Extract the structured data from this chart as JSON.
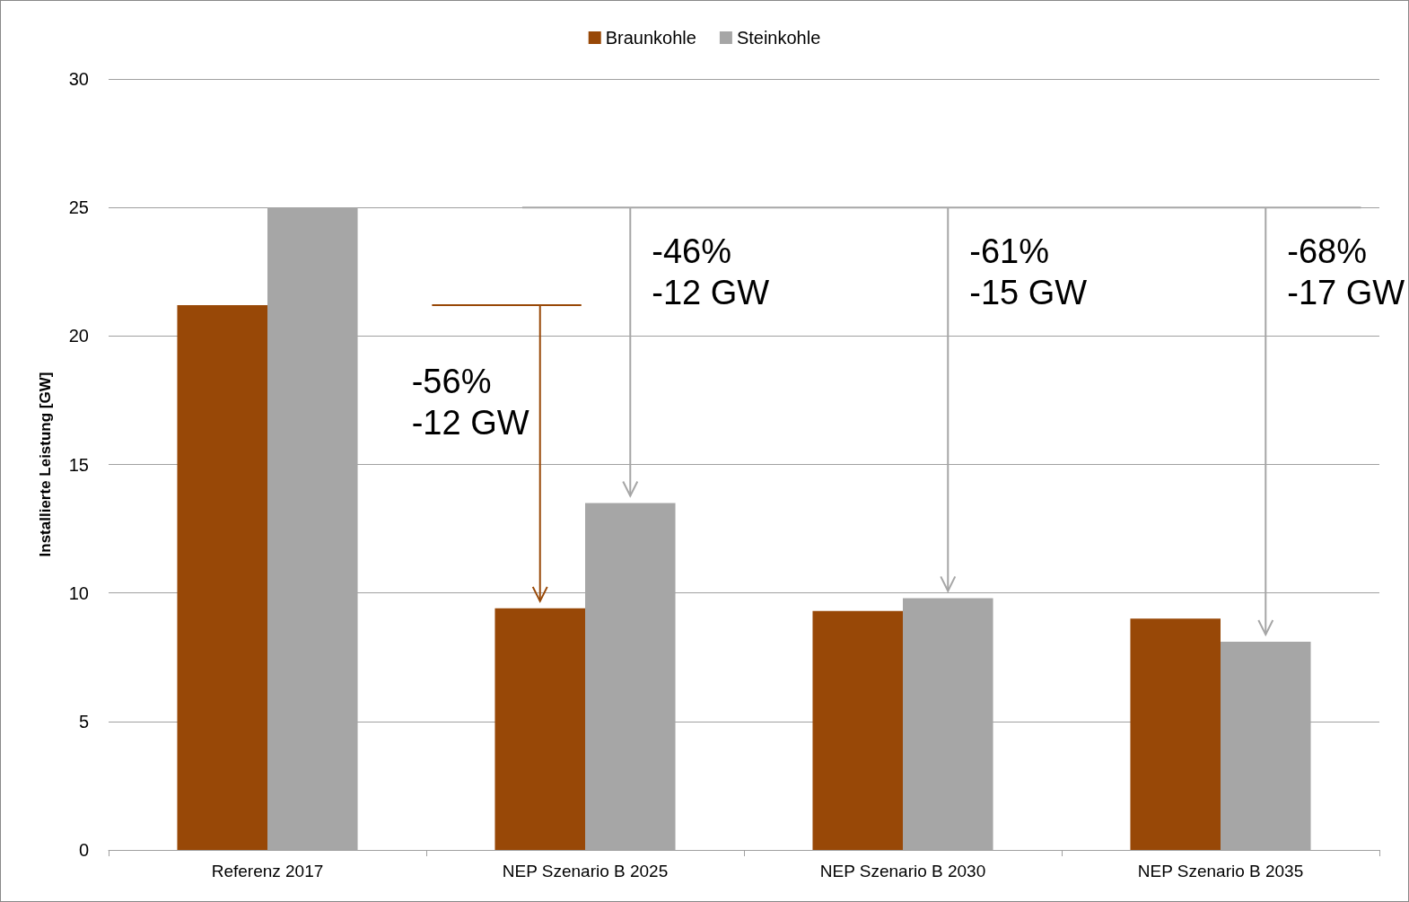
{
  "chart_data": {
    "type": "bar",
    "ylabel": "Installierte Leistung [GW]",
    "categories": [
      "Referenz 2017",
      "NEP Szenario B 2025",
      "NEP Szenario B 2030",
      "NEP Szenario B 2035"
    ],
    "series": [
      {
        "name": "Braunkohle",
        "color": "#984807",
        "values": [
          21.2,
          9.4,
          9.3,
          9.0
        ]
      },
      {
        "name": "Steinkohle",
        "color": "#a6a6a6",
        "values": [
          25.0,
          13.5,
          9.8,
          8.1
        ]
      }
    ],
    "ylim": [
      0,
      30
    ],
    "yticks": [
      0,
      5,
      10,
      15,
      20,
      25,
      30
    ],
    "grid": "y",
    "legend": "top",
    "annotations": [
      "-56%\n-12 GW",
      "-46%\n-12 GW",
      "-61%\n-15 GW",
      "-68%\n-17 GW"
    ]
  }
}
